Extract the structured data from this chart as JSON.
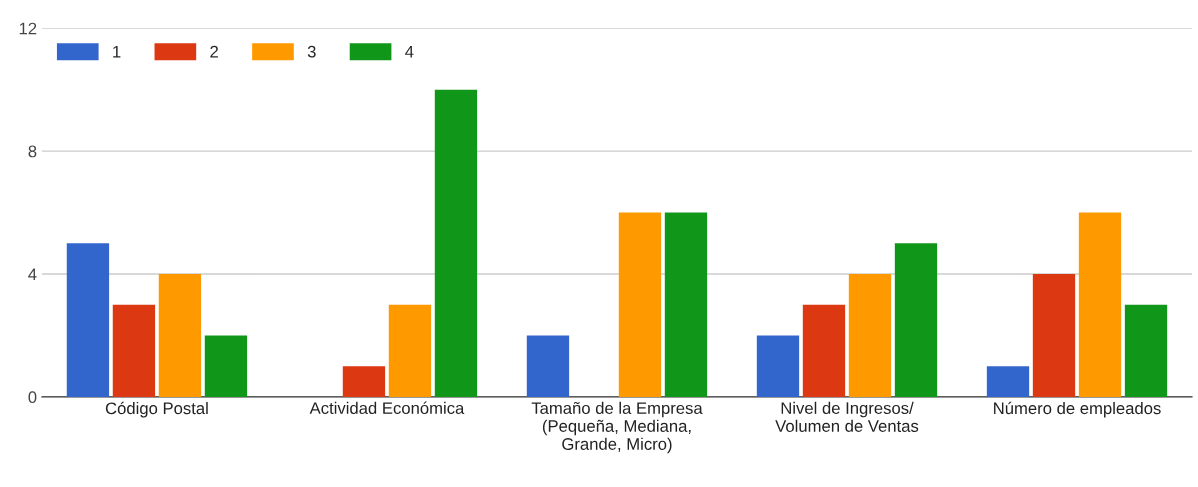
{
  "chart_data": {
    "type": "bar",
    "categories": [
      "Código Postal",
      "Actividad Económica",
      "Tamaño de la Empresa\n(Pequeña, Mediana,\nGrande, Micro)",
      "Nivel de Ingresos/\nVolumen de Ventas",
      "Número de empleados"
    ],
    "series": [
      {
        "name": "1",
        "color": "#3366cc",
        "values": [
          5,
          0,
          2,
          2,
          1
        ]
      },
      {
        "name": "2",
        "color": "#dc3912",
        "values": [
          3,
          1,
          0,
          3,
          4
        ]
      },
      {
        "name": "3",
        "color": "#ff9900",
        "values": [
          4,
          3,
          6,
          4,
          6
        ]
      },
      {
        "name": "4",
        "color": "#109618",
        "values": [
          2,
          10,
          6,
          5,
          3
        ]
      }
    ],
    "ylim": [
      0,
      12
    ],
    "yticks": [
      0,
      4,
      8,
      12
    ],
    "grid": "y",
    "legend": "top left"
  }
}
